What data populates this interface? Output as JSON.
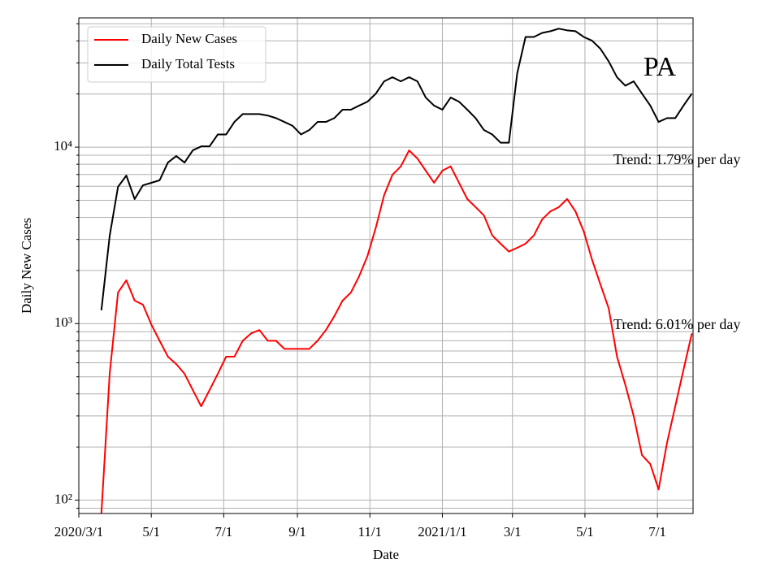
{
  "chart_data": {
    "type": "line",
    "title": "PA",
    "x_label": "Date",
    "y_label": "Daily New Cases",
    "annotations": [
      "Trend: 1.79% per day",
      "Trend: 6.01% per day"
    ],
    "log_scale_y": true,
    "grid": true,
    "legend": "upper left",
    "x": [
      "2020-03-20",
      "2020-03-27",
      "2020-04-03",
      "2020-04-10",
      "2020-04-17",
      "2020-04-24",
      "2020-05-01",
      "2020-05-08",
      "2020-05-15",
      "2020-05-22",
      "2020-05-29",
      "2020-06-05",
      "2020-06-12",
      "2020-06-19",
      "2020-06-26",
      "2020-07-03",
      "2020-07-10",
      "2020-07-17",
      "2020-07-24",
      "2020-07-31",
      "2020-08-07",
      "2020-08-14",
      "2020-08-21",
      "2020-08-28",
      "2020-09-04",
      "2020-09-11",
      "2020-09-18",
      "2020-09-25",
      "2020-10-02",
      "2020-10-09",
      "2020-10-16",
      "2020-10-23",
      "2020-10-30",
      "2020-11-06",
      "2020-11-13",
      "2020-11-20",
      "2020-11-27",
      "2020-12-04",
      "2020-12-11",
      "2020-12-18",
      "2020-12-25",
      "2021-01-01",
      "2021-01-08",
      "2021-01-15",
      "2021-01-22",
      "2021-01-29",
      "2021-02-05",
      "2021-02-12",
      "2021-02-19",
      "2021-02-26",
      "2021-03-05",
      "2021-03-12",
      "2021-03-19",
      "2021-03-26",
      "2021-04-02",
      "2021-04-09",
      "2021-04-16",
      "2021-04-23",
      "2021-04-30",
      "2021-05-07",
      "2021-05-14",
      "2021-05-21",
      "2021-05-28",
      "2021-06-04",
      "2021-06-11",
      "2021-06-18",
      "2021-06-25",
      "2021-07-02",
      "2021-07-09",
      "2021-07-16",
      "2021-07-23",
      "2021-07-30"
    ],
    "series": [
      {
        "name": "Daily New Cases",
        "color": "#ff0000",
        "values": [
          84,
          522,
          1500,
          1760,
          1350,
          1280,
          990,
          800,
          650,
          590,
          520,
          420,
          340,
          420,
          520,
          650,
          650,
          800,
          880,
          920,
          800,
          800,
          720,
          720,
          720,
          720,
          800,
          920,
          1100,
          1350,
          1500,
          1860,
          2420,
          3500,
          5350,
          6980,
          7780,
          9580,
          8620,
          7360,
          6280,
          7360,
          7780,
          6280,
          5080,
          4570,
          4100,
          3160,
          2840,
          2560,
          2690,
          2840,
          3160,
          3900,
          4330,
          4570,
          5080,
          4330,
          3330,
          2300,
          1670,
          1220,
          650,
          450,
          300,
          180,
          160,
          115,
          210,
          340,
          550,
          880
        ]
      },
      {
        "name": "Daily Total Tests",
        "color": "#000000",
        "values": [
          1190,
          3150,
          5960,
          6900,
          5080,
          6080,
          6280,
          6490,
          8180,
          8900,
          8180,
          9600,
          10100,
          10100,
          11800,
          11800,
          13900,
          15400,
          15400,
          15400,
          15100,
          14600,
          13900,
          13200,
          11800,
          12500,
          13900,
          13900,
          14600,
          16300,
          16300,
          17200,
          18100,
          20100,
          23600,
          24900,
          23600,
          24900,
          23600,
          19100,
          17200,
          16300,
          19100,
          18100,
          16300,
          14600,
          12500,
          11800,
          10600,
          10600,
          26200,
          42100,
          42100,
          44400,
          45400,
          46900,
          45900,
          45400,
          42100,
          40100,
          36100,
          30600,
          24900,
          22300,
          23600,
          20100,
          17200,
          13900,
          14600,
          14600,
          17200,
          20100
        ]
      }
    ],
    "xlim": [
      "2020-03-01",
      "2021-07-31"
    ],
    "xticks": [
      {
        "value": "2020-03-01",
        "label": "2020/3/1"
      },
      {
        "value": "2020-05-01",
        "label": "5/1"
      },
      {
        "value": "2020-07-01",
        "label": "7/1"
      },
      {
        "value": "2020-09-01",
        "label": "9/1"
      },
      {
        "value": "2020-11-01",
        "label": "11/1"
      },
      {
        "value": "2021-01-01",
        "label": "2021/1/1"
      },
      {
        "value": "2021-03-01",
        "label": "3/1"
      },
      {
        "value": "2021-05-01",
        "label": "5/1"
      },
      {
        "value": "2021-07-01",
        "label": "7/1"
      }
    ],
    "ylim": [
      84,
      54000
    ],
    "yticks": [
      {
        "value": 100,
        "label": "10²"
      },
      {
        "value": 1000,
        "label": "10³"
      },
      {
        "value": 10000,
        "label": "10⁴"
      }
    ],
    "yminorticks": [
      90,
      200,
      300,
      400,
      500,
      600,
      700,
      800,
      900,
      2000,
      3000,
      4000,
      5000,
      6000,
      7000,
      8000,
      9000,
      20000,
      30000,
      40000,
      50000
    ]
  }
}
